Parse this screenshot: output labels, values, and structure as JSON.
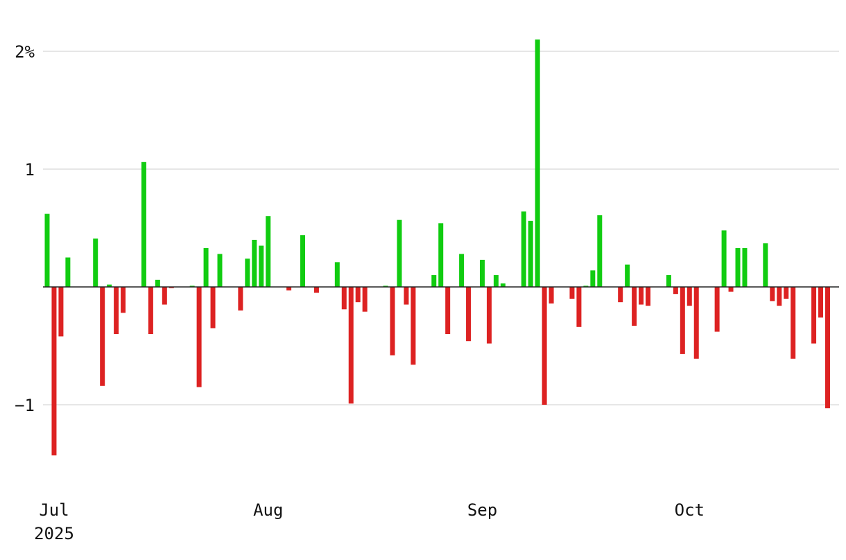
{
  "chart_data": {
    "type": "bar",
    "title": "",
    "xlabel": "",
    "ylabel": "",
    "ylim": [
      -1.65,
      2.2
    ],
    "xlim": [
      "2025-06-30",
      "2025-10-22"
    ],
    "y_ticks": [
      {
        "value": 2,
        "label": "2%"
      },
      {
        "value": 1,
        "label": "1"
      },
      {
        "value": -1,
        "label": "−1"
      }
    ],
    "x_ticks": [
      {
        "date": "2025-07-01",
        "label": "Jul",
        "sublabel": "2025"
      },
      {
        "date": "2025-08-01",
        "label": "Aug",
        "sublabel": ""
      },
      {
        "date": "2025-09-01",
        "label": "Sep",
        "sublabel": ""
      },
      {
        "date": "2025-10-01",
        "label": "Oct",
        "sublabel": ""
      }
    ],
    "grid": true,
    "colors": {
      "positive": "#11cc11",
      "negative": "#dd2222",
      "grid": "#dddddd",
      "zero_line": "#222222"
    },
    "series": [
      {
        "dates": [
          "2025-07-01",
          "2025-07-02",
          "2025-07-03",
          "2025-07-04",
          "2025-07-08",
          "2025-07-09",
          "2025-07-10",
          "2025-07-11",
          "2025-07-12",
          "2025-07-15",
          "2025-07-16",
          "2025-07-17",
          "2025-07-18",
          "2025-07-19",
          "2025-07-22",
          "2025-07-23",
          "2025-07-24",
          "2025-07-25",
          "2025-07-26",
          "2025-07-29",
          "2025-07-30",
          "2025-07-31",
          "2025-08-01",
          "2025-08-02",
          "2025-08-05",
          "2025-08-07",
          "2025-08-09",
          "2025-08-12",
          "2025-08-13",
          "2025-08-14",
          "2025-08-15",
          "2025-08-16",
          "2025-08-19",
          "2025-08-20",
          "2025-08-21",
          "2025-08-22",
          "2025-08-23",
          "2025-08-26",
          "2025-08-27",
          "2025-08-28",
          "2025-08-30",
          "2025-08-31",
          "2025-09-02",
          "2025-09-03",
          "2025-09-04",
          "2025-09-05",
          "2025-09-08",
          "2025-09-09",
          "2025-09-10",
          "2025-09-11",
          "2025-09-12",
          "2025-09-15",
          "2025-09-16",
          "2025-09-17",
          "2025-09-18",
          "2025-09-19",
          "2025-09-22",
          "2025-09-23",
          "2025-09-24",
          "2025-09-25",
          "2025-09-26",
          "2025-09-29",
          "2025-09-30",
          "2025-10-01",
          "2025-10-02",
          "2025-10-03",
          "2025-10-06",
          "2025-10-07",
          "2025-10-08",
          "2025-10-09",
          "2025-10-10",
          "2025-10-13",
          "2025-10-14",
          "2025-10-15",
          "2025-10-16",
          "2025-10-17",
          "2025-10-20",
          "2025-10-21",
          "2025-10-22"
        ],
        "values": [
          0.62,
          -1.43,
          -0.42,
          0.25,
          0.41,
          -0.84,
          0.02,
          -0.4,
          -0.22,
          1.06,
          -0.4,
          0.06,
          -0.15,
          -0.01,
          0.01,
          -0.85,
          0.33,
          -0.35,
          0.28,
          -0.2,
          0.24,
          0.4,
          0.35,
          0.6,
          -0.03,
          0.44,
          -0.05,
          0.21,
          -0.19,
          -0.99,
          -0.13,
          -0.21,
          0.01,
          -0.58,
          0.57,
          -0.15,
          -0.66,
          0.1,
          0.54,
          -0.4,
          0.28,
          -0.46,
          0.23,
          -0.48,
          0.1,
          0.03,
          0.64,
          0.56,
          2.1,
          -1.0,
          -0.14,
          -0.1,
          -0.34,
          0.01,
          0.14,
          0.61,
          -0.13,
          0.19,
          -0.33,
          -0.15,
          -0.16,
          0.1,
          -0.06,
          -0.57,
          -0.16,
          -0.61,
          -0.38,
          0.48,
          -0.04,
          0.33,
          0.33,
          0.37,
          -0.12,
          -0.16,
          -0.1,
          -0.61,
          -0.48,
          -0.26,
          -1.03
        ]
      }
    ]
  }
}
